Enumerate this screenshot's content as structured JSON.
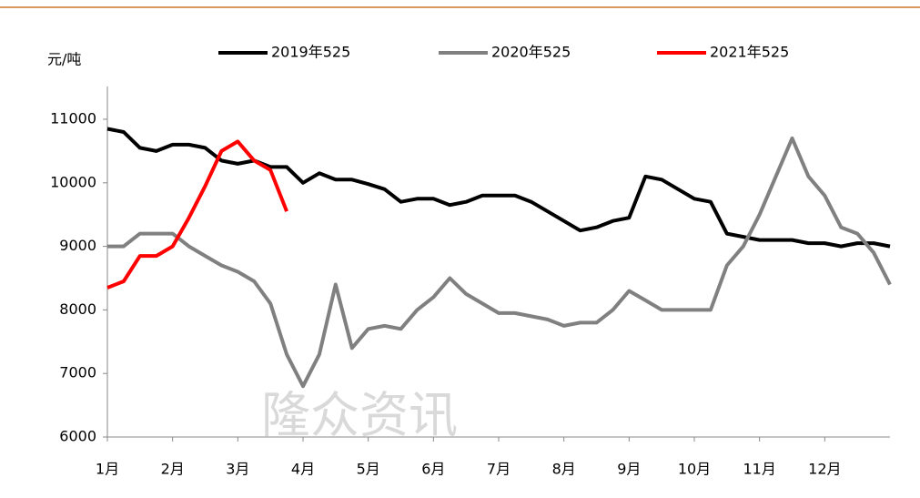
{
  "chart_data": {
    "type": "line",
    "y_label": "元/吨",
    "watermark": "隆众资讯",
    "x": [
      0,
      0.25,
      0.5,
      0.75,
      1,
      1.25,
      1.5,
      1.75,
      2,
      2.25,
      2.5,
      2.75,
      3,
      3.25,
      3.5,
      3.75,
      4,
      4.25,
      4.5,
      4.75,
      5,
      5.25,
      5.5,
      5.75,
      6,
      6.25,
      6.5,
      6.75,
      7,
      7.25,
      7.5,
      7.75,
      8,
      8.25,
      8.5,
      8.75,
      9,
      9.25,
      9.5,
      9.75,
      10,
      10.25,
      10.5,
      10.75,
      11,
      11.25,
      11.5,
      11.75,
      12
    ],
    "xlim": [
      0,
      12
    ],
    "xticks": [
      {
        "value": 0,
        "label": "1月"
      },
      {
        "value": 1,
        "label": "2月"
      },
      {
        "value": 2,
        "label": "3月"
      },
      {
        "value": 3,
        "label": "4月"
      },
      {
        "value": 4,
        "label": "5月"
      },
      {
        "value": 5,
        "label": "6月"
      },
      {
        "value": 6,
        "label": "7月"
      },
      {
        "value": 7,
        "label": "8月"
      },
      {
        "value": 8,
        "label": "9月"
      },
      {
        "value": 9,
        "label": "10月"
      },
      {
        "value": 10,
        "label": "11月"
      },
      {
        "value": 11,
        "label": "12月"
      }
    ],
    "ylim": [
      6000,
      11000
    ],
    "yticks": [
      6000,
      7000,
      8000,
      9000,
      10000,
      11000
    ],
    "legend": "top",
    "series": [
      {
        "name": "2019年525",
        "color": "#000000",
        "values": [
          10850,
          10800,
          10550,
          10500,
          10600,
          10600,
          10550,
          10350,
          10300,
          10350,
          10250,
          10250,
          10000,
          10150,
          10050,
          10050,
          9980,
          9900,
          9700,
          9750,
          9750,
          9650,
          9700,
          9800,
          9800,
          9800,
          9700,
          9550,
          9400,
          9250,
          9300,
          9400,
          9450,
          10100,
          10050,
          9900,
          9750,
          9700,
          9200,
          9150,
          9100,
          9100,
          9100,
          9050,
          9050,
          9000,
          9050,
          9050,
          9000
        ]
      },
      {
        "name": "2020年525",
        "color": "#808080",
        "values": [
          9000,
          9000,
          9200,
          9200,
          9200,
          9000,
          8850,
          8700,
          8600,
          8450,
          8100,
          7300,
          6800,
          7300,
          8400,
          7400,
          7700,
          7750,
          7700,
          8000,
          8200,
          8500,
          8250,
          8100,
          7950,
          7950,
          7900,
          7850,
          7750,
          7800,
          7800,
          8000,
          8300,
          8150,
          8000,
          8000,
          8000,
          8000,
          8700,
          9000,
          9500,
          10100,
          10700,
          10100,
          9800,
          9300,
          9200,
          8900,
          8400
        ]
      },
      {
        "name": "2021年525",
        "color": "#ff0000",
        "values": [
          8350,
          8450,
          8850,
          8850,
          9000,
          9450,
          9950,
          10500,
          10650,
          10350,
          10200,
          9550,
          null,
          null,
          null,
          null,
          null,
          null,
          null,
          null,
          null,
          null,
          null,
          null,
          null,
          null,
          null,
          null,
          null,
          null,
          null,
          null,
          null,
          null,
          null,
          null,
          null,
          null,
          null,
          null,
          null,
          null,
          null,
          null,
          null,
          null,
          null,
          null,
          null
        ]
      }
    ]
  }
}
